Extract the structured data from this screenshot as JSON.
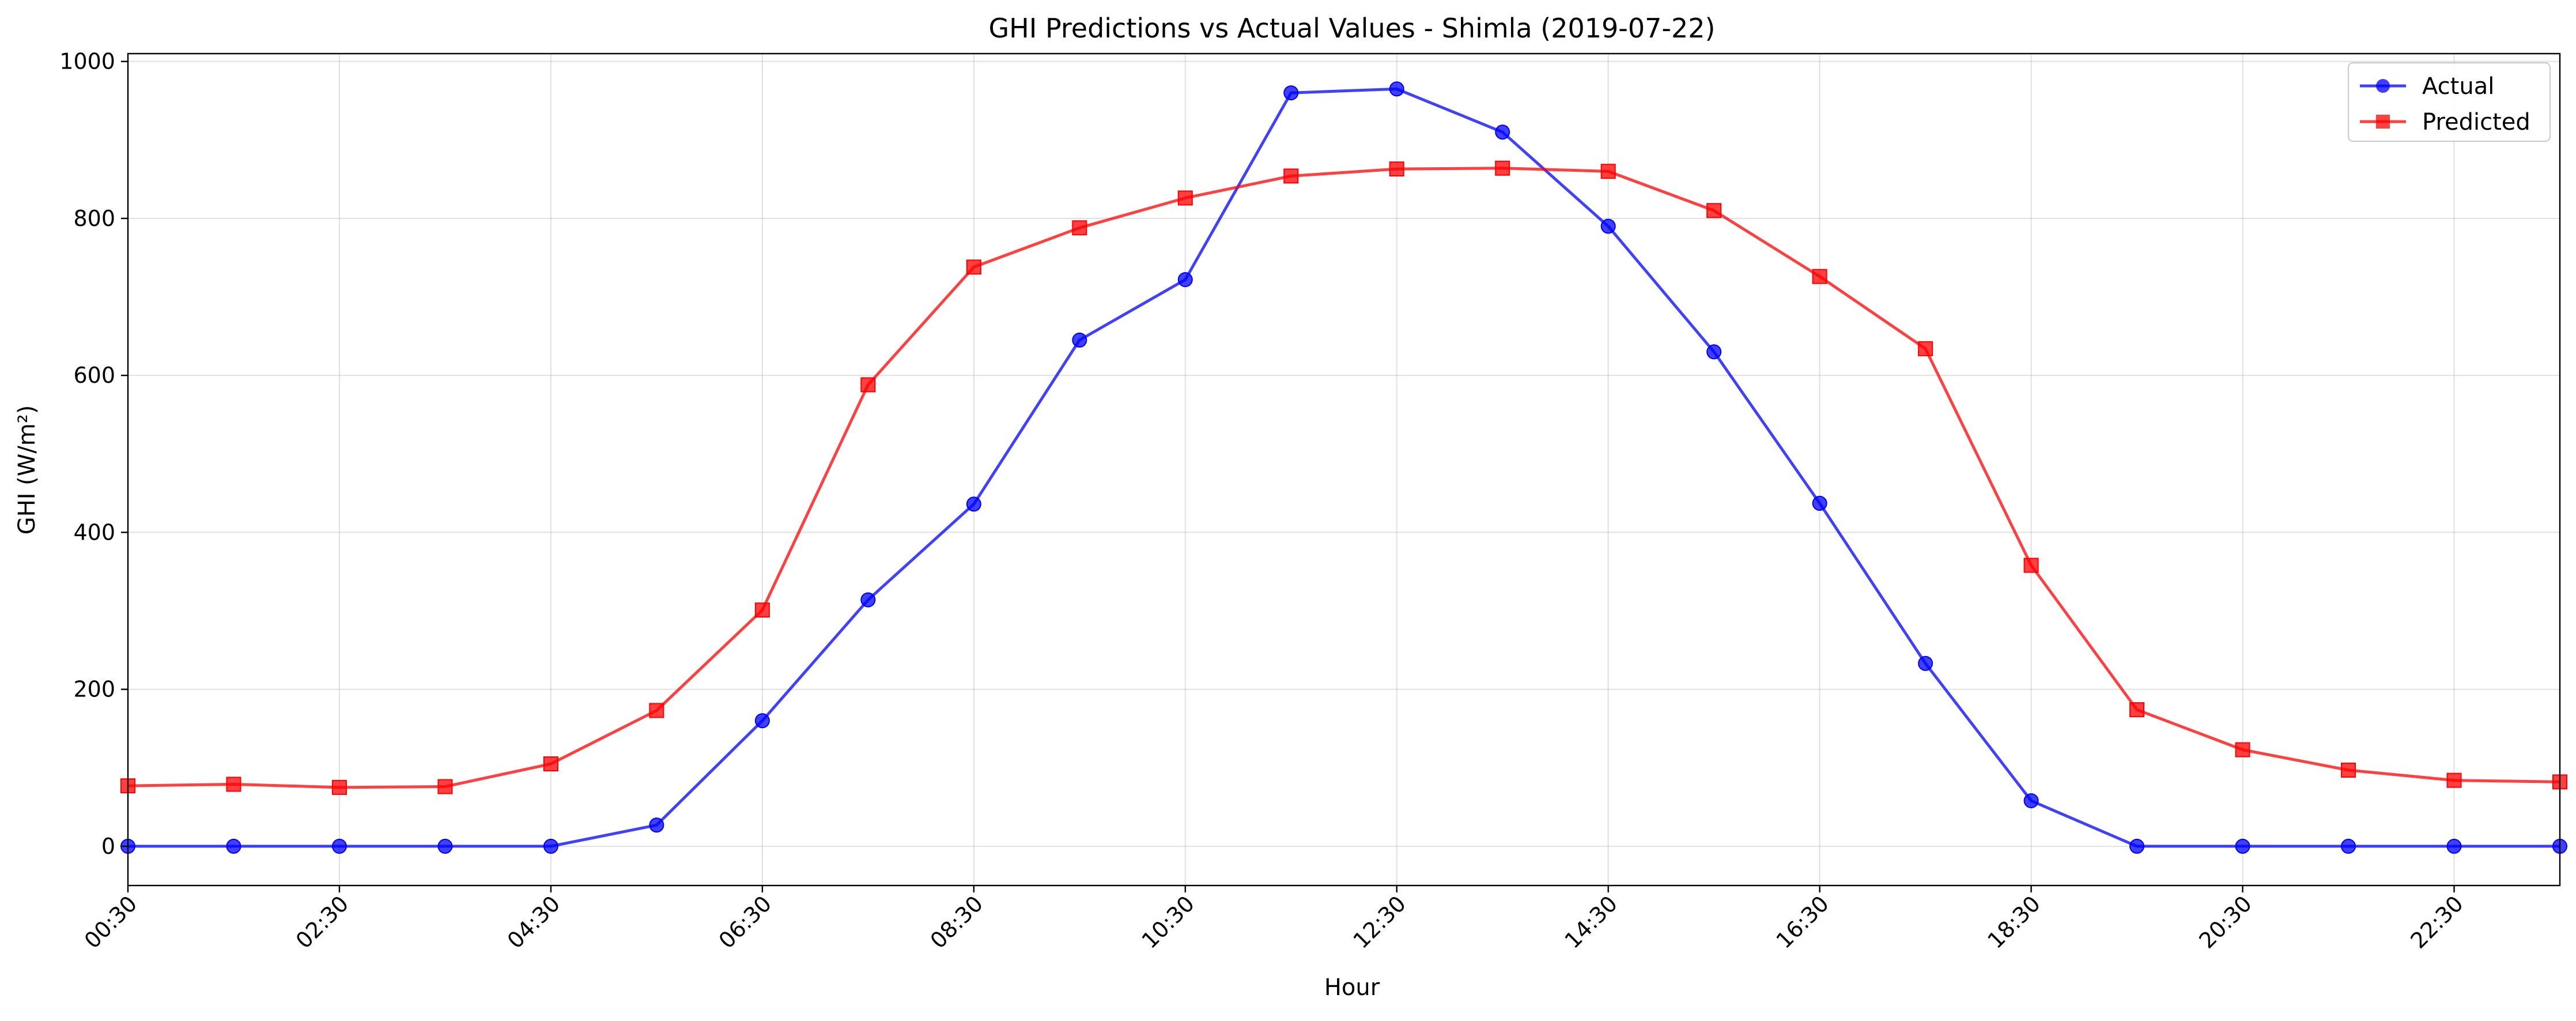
{
  "chart_data": {
    "type": "line",
    "title": "GHI Predictions vs Actual Values - Shimla (2019-07-22)",
    "xlabel": "Hour",
    "ylabel": "GHI (W/m²)",
    "x": [
      "00:30",
      "01:30",
      "02:30",
      "03:30",
      "04:30",
      "05:30",
      "06:30",
      "07:30",
      "08:30",
      "09:30",
      "10:30",
      "11:30",
      "12:30",
      "13:30",
      "14:30",
      "15:30",
      "16:30",
      "17:30",
      "18:30",
      "19:30",
      "20:30",
      "21:30",
      "22:30",
      "23:30"
    ],
    "xticks": [
      "00:30",
      "02:30",
      "04:30",
      "06:30",
      "08:30",
      "10:30",
      "12:30",
      "14:30",
      "16:30",
      "18:30",
      "20:30",
      "22:30"
    ],
    "yticks": [
      0,
      200,
      400,
      600,
      800,
      1000
    ],
    "ylim": [
      -50,
      1010
    ],
    "grid": true,
    "legend_position": "top-right",
    "series": [
      {
        "name": "Actual",
        "color": "#0000ff",
        "marker": "circle",
        "values": [
          0,
          0,
          0,
          0,
          0,
          27,
          160,
          314,
          436,
          645,
          722,
          960,
          965,
          910,
          790,
          630,
          437,
          233,
          58,
          0,
          0,
          0,
          0,
          0
        ]
      },
      {
        "name": "Predicted",
        "color": "#ff0000",
        "marker": "square",
        "values": [
          77,
          79,
          75,
          76,
          105,
          173,
          301,
          588,
          738,
          788,
          826,
          854,
          863,
          864,
          860,
          810,
          726,
          634,
          358,
          174,
          123,
          97,
          84,
          82
        ]
      }
    ]
  }
}
